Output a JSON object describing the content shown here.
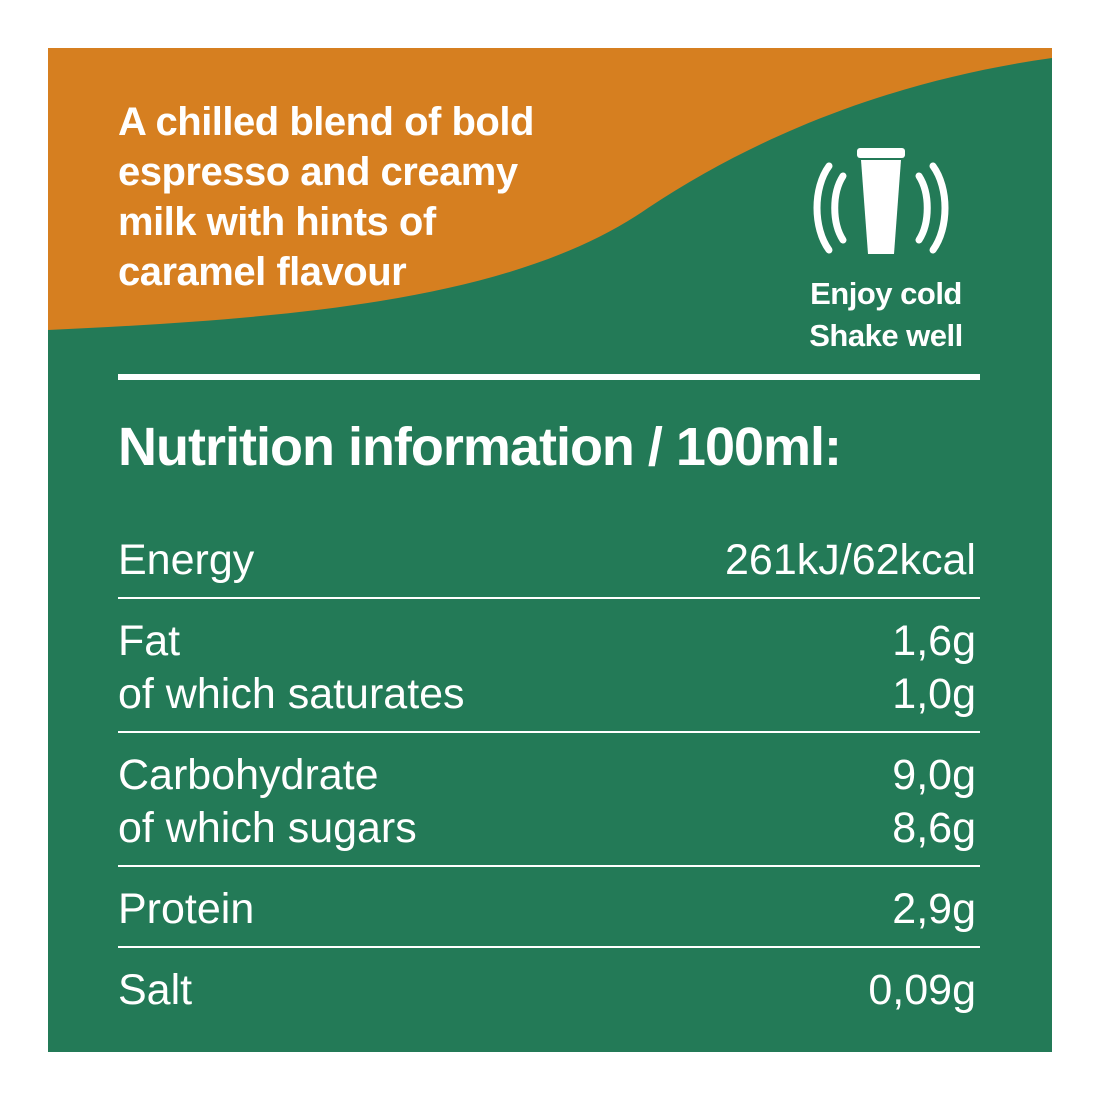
{
  "description": {
    "lines": [
      "A chilled blend of bold",
      "espresso and creamy",
      "milk with hints of",
      "caramel flavour"
    ]
  },
  "instructions": {
    "lines": [
      "Enjoy cold",
      "Shake well"
    ]
  },
  "nutrition": {
    "title": "Nutrition information / 100ml:",
    "groups": [
      {
        "rows": [
          {
            "label": "Energy",
            "value": "261kJ/62kcal"
          }
        ]
      },
      {
        "rows": [
          {
            "label": "Fat",
            "value": "1,6g"
          },
          {
            "label": "of which saturates",
            "value": "1,0g"
          }
        ]
      },
      {
        "rows": [
          {
            "label": "Carbohydrate",
            "value": "9,0g"
          },
          {
            "label": "of which sugars",
            "value": "8,6g"
          }
        ]
      },
      {
        "rows": [
          {
            "label": "Protein",
            "value": "2,9g"
          }
        ]
      },
      {
        "rows": [
          {
            "label": "Salt",
            "value": "0,09g"
          }
        ]
      }
    ]
  }
}
